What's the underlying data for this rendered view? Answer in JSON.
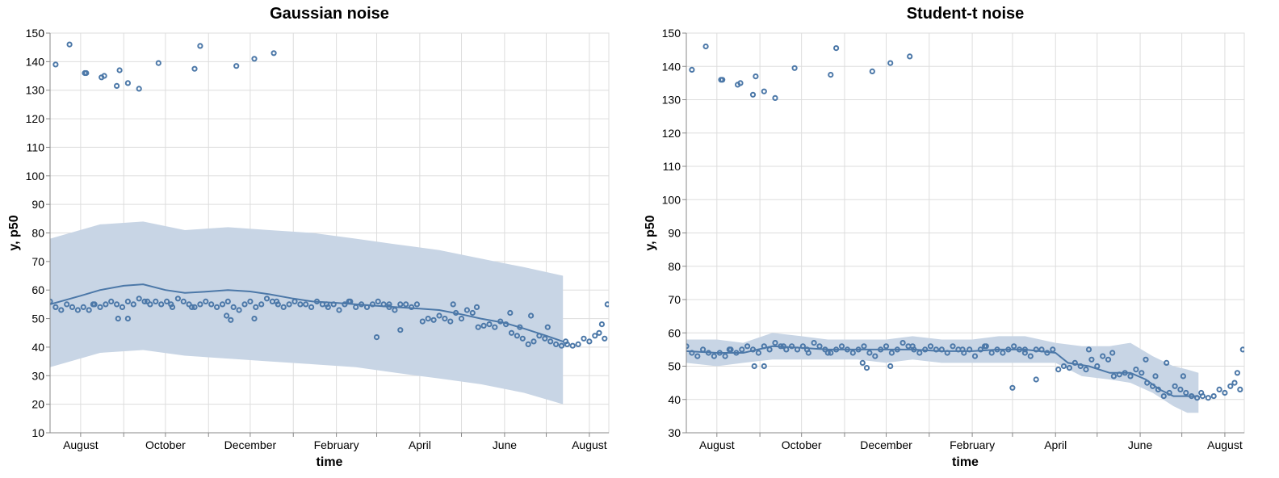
{
  "colors": {
    "series": "#4c78a8",
    "band": "#c8d5e5",
    "grid": "#dddddd",
    "axis": "#888888"
  },
  "chart_data": [
    {
      "type": "line",
      "title": "Gaussian noise",
      "xlabel": "time",
      "ylabel": "y, p50",
      "ylim": [
        10,
        150
      ],
      "yticks": [
        10,
        20,
        30,
        40,
        50,
        60,
        70,
        80,
        90,
        100,
        110,
        120,
        130,
        140,
        150
      ],
      "xlim": [
        "2019-07-10",
        "2020-08-15"
      ],
      "xticks": [
        {
          "date": "2019-08-01",
          "label": "August"
        },
        {
          "date": "2019-09-01",
          "label": ""
        },
        {
          "date": "2019-10-01",
          "label": "October"
        },
        {
          "date": "2019-11-01",
          "label": ""
        },
        {
          "date": "2019-12-01",
          "label": "December"
        },
        {
          "date": "2020-01-01",
          "label": ""
        },
        {
          "date": "2020-02-01",
          "label": "February"
        },
        {
          "date": "2020-03-01",
          "label": ""
        },
        {
          "date": "2020-04-01",
          "label": "April"
        },
        {
          "date": "2020-05-01",
          "label": ""
        },
        {
          "date": "2020-06-01",
          "label": "June"
        },
        {
          "date": "2020-07-01",
          "label": ""
        },
        {
          "date": "2020-08-01",
          "label": "August"
        }
      ],
      "grid": true,
      "band": {
        "name": "prediction interval",
        "x": [
          "2019-07-10",
          "2019-08-15",
          "2019-09-15",
          "2019-10-15",
          "2019-11-15",
          "2019-12-15",
          "2020-01-15",
          "2020-02-15",
          "2020-03-15",
          "2020-04-15",
          "2020-05-15",
          "2020-06-15",
          "2020-07-13"
        ],
        "lower": [
          33,
          38,
          39,
          37,
          36,
          35,
          34,
          33,
          31,
          29,
          27,
          24,
          20
        ],
        "upper": [
          78,
          83,
          84,
          81,
          82,
          81,
          80,
          78,
          76,
          74,
          71,
          68,
          65
        ]
      },
      "line": {
        "name": "p50",
        "x": [
          "2019-07-10",
          "2019-08-01",
          "2019-08-15",
          "2019-09-01",
          "2019-09-15",
          "2019-10-01",
          "2019-10-15",
          "2019-11-01",
          "2019-11-15",
          "2019-12-01",
          "2019-12-15",
          "2020-01-01",
          "2020-01-15",
          "2020-02-01",
          "2020-02-15",
          "2020-03-01",
          "2020-03-15",
          "2020-04-01",
          "2020-04-15",
          "2020-05-01",
          "2020-05-15",
          "2020-06-01",
          "2020-06-15",
          "2020-07-01",
          "2020-07-13"
        ],
        "y": [
          55,
          58,
          60,
          61.5,
          62,
          60,
          59,
          59.5,
          60,
          59.5,
          58.5,
          57,
          56,
          55.5,
          55,
          54.5,
          54,
          53.5,
          53,
          51.5,
          50,
          48.5,
          46.5,
          44,
          42
        ]
      },
      "points": {
        "name": "y",
        "x": [
          "2019-07-14",
          "2019-07-24",
          "2019-08-04",
          "2019-08-05",
          "2019-08-16",
          "2019-08-18",
          "2019-08-27",
          "2019-08-29",
          "2019-09-04",
          "2019-09-12",
          "2019-09-26",
          "2019-10-22",
          "2019-10-26",
          "2019-11-21",
          "2019-12-04",
          "2019-12-18",
          "2019-08-28",
          "2019-09-04",
          "2019-11-14",
          "2019-11-17",
          "2019-12-04",
          "2020-03-01",
          "2020-03-18",
          "2019-08-10",
          "2019-09-18",
          "2019-10-05",
          "2019-10-20",
          "2019-12-20",
          "2020-01-25",
          "2020-02-10",
          "2020-03-10",
          "2020-04-25",
          "2020-05-12",
          "2019-07-10",
          "2019-07-14",
          "2019-07-18",
          "2019-07-22",
          "2019-07-26",
          "2019-07-30",
          "2019-08-03",
          "2019-08-07",
          "2019-08-11",
          "2019-08-15",
          "2019-08-19",
          "2019-08-23",
          "2019-08-27",
          "2019-08-31",
          "2019-09-04",
          "2019-09-08",
          "2019-09-12",
          "2019-09-16",
          "2019-09-20",
          "2019-09-24",
          "2019-09-28",
          "2019-10-02",
          "2019-10-06",
          "2019-10-10",
          "2019-10-14",
          "2019-10-18",
          "2019-10-22",
          "2019-10-26",
          "2019-10-30",
          "2019-11-03",
          "2019-11-07",
          "2019-11-11",
          "2019-11-15",
          "2019-11-19",
          "2019-11-23",
          "2019-11-27",
          "2019-12-01",
          "2019-12-05",
          "2019-12-09",
          "2019-12-13",
          "2019-12-17",
          "2019-12-21",
          "2019-12-25",
          "2019-12-29",
          "2020-01-02",
          "2020-01-06",
          "2020-01-10",
          "2020-01-14",
          "2020-01-18",
          "2020-01-22",
          "2020-01-26",
          "2020-01-30",
          "2020-02-03",
          "2020-02-07",
          "2020-02-11",
          "2020-02-15",
          "2020-02-19",
          "2020-02-23",
          "2020-02-27",
          "2020-03-02",
          "2020-03-06",
          "2020-03-10",
          "2020-03-14",
          "2020-03-18",
          "2020-03-22",
          "2020-03-26",
          "2020-03-30",
          "2020-04-03",
          "2020-04-07",
          "2020-04-11",
          "2020-04-15",
          "2020-04-19",
          "2020-04-23",
          "2020-04-27",
          "2020-05-01",
          "2020-05-05",
          "2020-05-09",
          "2020-05-13",
          "2020-05-17",
          "2020-05-21",
          "2020-05-25",
          "2020-05-29",
          "2020-06-02",
          "2020-06-06",
          "2020-06-10",
          "2020-06-14",
          "2020-06-18",
          "2020-06-22",
          "2020-06-26",
          "2020-06-30",
          "2020-07-04",
          "2020-07-08",
          "2020-07-12",
          "2020-07-16",
          "2020-07-20",
          "2020-07-24",
          "2020-07-28",
          "2020-08-01",
          "2020-08-05",
          "2020-08-08",
          "2020-08-12",
          "2020-08-14",
          "2020-06-05",
          "2020-06-12",
          "2020-06-20",
          "2020-07-02",
          "2020-07-15",
          "2020-08-10"
        ],
        "y": [
          139,
          146,
          136,
          136,
          134.5,
          135,
          131.5,
          137,
          132.5,
          130.5,
          139.5,
          137.5,
          145.5,
          138.5,
          141,
          143,
          50,
          50,
          51,
          49.5,
          50,
          43.5,
          46,
          55,
          56,
          55,
          54,
          56,
          55,
          56,
          55,
          55,
          54,
          56,
          54,
          53,
          55,
          54,
          53,
          54,
          53,
          55,
          54,
          55,
          56,
          55,
          54,
          56,
          55,
          57,
          56,
          55,
          56,
          55,
          56,
          54,
          57,
          56,
          55,
          54,
          55,
          56,
          55,
          54,
          55,
          56,
          54,
          53,
          55,
          56,
          54,
          55,
          57,
          56,
          55,
          54,
          55,
          56,
          55,
          55,
          54,
          56,
          55,
          54,
          55,
          53,
          55,
          56,
          54,
          55,
          54,
          55,
          56,
          55,
          54,
          53,
          55,
          55,
          54,
          55,
          49,
          50,
          49.5,
          51,
          50,
          49,
          52,
          50,
          53,
          52,
          47,
          47.5,
          48,
          47,
          49,
          48,
          45,
          44,
          43,
          41,
          42,
          44,
          43,
          42,
          41,
          40.5,
          41,
          40.5,
          41,
          43,
          42,
          44,
          45,
          43,
          55,
          52,
          47,
          51,
          47,
          42,
          48
        ]
      }
    },
    {
      "type": "line",
      "title": "Student-t noise",
      "xlabel": "time",
      "ylabel": "y, p50",
      "ylim": [
        30,
        150
      ],
      "yticks": [
        30,
        40,
        50,
        60,
        70,
        80,
        90,
        100,
        110,
        120,
        130,
        140,
        150
      ],
      "xlim": [
        "2019-07-10",
        "2020-08-15"
      ],
      "xticks": [
        {
          "date": "2019-08-01",
          "label": "August"
        },
        {
          "date": "2019-09-01",
          "label": ""
        },
        {
          "date": "2019-10-01",
          "label": "October"
        },
        {
          "date": "2019-11-01",
          "label": ""
        },
        {
          "date": "2019-12-01",
          "label": "December"
        },
        {
          "date": "2020-01-01",
          "label": ""
        },
        {
          "date": "2020-02-01",
          "label": "February"
        },
        {
          "date": "2020-03-01",
          "label": ""
        },
        {
          "date": "2020-04-01",
          "label": "April"
        },
        {
          "date": "2020-05-01",
          "label": ""
        },
        {
          "date": "2020-06-01",
          "label": "June"
        },
        {
          "date": "2020-07-01",
          "label": ""
        },
        {
          "date": "2020-08-01",
          "label": "August"
        }
      ],
      "grid": true,
      "band": {
        "name": "prediction interval",
        "x": [
          "2019-07-10",
          "2019-08-01",
          "2019-08-20",
          "2019-09-10",
          "2019-10-01",
          "2019-10-20",
          "2019-11-10",
          "2019-12-01",
          "2019-12-20",
          "2020-01-10",
          "2020-02-01",
          "2020-02-20",
          "2020-03-10",
          "2020-04-01",
          "2020-04-20",
          "2020-05-10",
          "2020-05-25",
          "2020-06-10",
          "2020-06-25",
          "2020-07-05",
          "2020-07-13"
        ],
        "lower": [
          51,
          50,
          51,
          52,
          52,
          52,
          52,
          51,
          52,
          51,
          51,
          51,
          51,
          51,
          47,
          46,
          45,
          42,
          38,
          36,
          36
        ],
        "upper": [
          58,
          58,
          57,
          60,
          59,
          58,
          58,
          58,
          59,
          58,
          58,
          59,
          59,
          57,
          56,
          56,
          57,
          53,
          50,
          49,
          48
        ]
      },
      "line": {
        "name": "p50",
        "x": [
          "2019-07-10",
          "2019-08-01",
          "2019-08-20",
          "2019-09-10",
          "2019-10-01",
          "2019-10-20",
          "2019-11-10",
          "2019-12-01",
          "2019-12-20",
          "2020-01-10",
          "2020-02-01",
          "2020-02-20",
          "2020-03-10",
          "2020-04-01",
          "2020-04-10",
          "2020-04-25",
          "2020-05-10",
          "2020-05-25",
          "2020-06-05",
          "2020-06-15",
          "2020-06-25",
          "2020-07-05",
          "2020-07-13"
        ],
        "y": [
          54.5,
          54,
          54,
          56,
          55.5,
          55,
          55,
          55,
          55,
          54.5,
          54.5,
          55,
          55,
          54,
          51,
          50,
          48,
          48,
          46,
          43,
          41,
          41,
          41
        ]
      },
      "points": {
        "name": "y",
        "x": [
          "2019-07-14",
          "2019-07-24",
          "2019-08-04",
          "2019-08-05",
          "2019-08-16",
          "2019-08-18",
          "2019-08-27",
          "2019-08-29",
          "2019-09-04",
          "2019-09-12",
          "2019-09-26",
          "2019-10-22",
          "2019-10-26",
          "2019-11-21",
          "2019-12-04",
          "2019-12-18",
          "2019-08-28",
          "2019-09-04",
          "2019-11-14",
          "2019-11-17",
          "2019-12-04",
          "2020-03-01",
          "2020-03-18",
          "2019-08-10",
          "2019-09-18",
          "2019-10-05",
          "2019-10-20",
          "2019-12-20",
          "2020-01-25",
          "2020-02-10",
          "2020-03-10",
          "2020-04-25",
          "2020-05-12",
          "2019-07-10",
          "2019-07-14",
          "2019-07-18",
          "2019-07-22",
          "2019-07-26",
          "2019-07-30",
          "2019-08-03",
          "2019-08-07",
          "2019-08-11",
          "2019-08-15",
          "2019-08-19",
          "2019-08-23",
          "2019-08-27",
          "2019-08-31",
          "2019-09-04",
          "2019-09-08",
          "2019-09-12",
          "2019-09-16",
          "2019-09-20",
          "2019-09-24",
          "2019-09-28",
          "2019-10-02",
          "2019-10-06",
          "2019-10-10",
          "2019-10-14",
          "2019-10-18",
          "2019-10-22",
          "2019-10-26",
          "2019-10-30",
          "2019-11-03",
          "2019-11-07",
          "2019-11-11",
          "2019-11-15",
          "2019-11-19",
          "2019-11-23",
          "2019-11-27",
          "2019-12-01",
          "2019-12-05",
          "2019-12-09",
          "2019-12-13",
          "2019-12-17",
          "2019-12-21",
          "2019-12-25",
          "2019-12-29",
          "2020-01-02",
          "2020-01-06",
          "2020-01-10",
          "2020-01-14",
          "2020-01-18",
          "2020-01-22",
          "2020-01-26",
          "2020-01-30",
          "2020-02-03",
          "2020-02-07",
          "2020-02-11",
          "2020-02-15",
          "2020-02-19",
          "2020-02-23",
          "2020-02-27",
          "2020-03-02",
          "2020-03-06",
          "2020-03-10",
          "2020-03-14",
          "2020-03-18",
          "2020-03-22",
          "2020-03-26",
          "2020-03-30",
          "2020-04-03",
          "2020-04-07",
          "2020-04-11",
          "2020-04-15",
          "2020-04-19",
          "2020-04-23",
          "2020-04-27",
          "2020-05-01",
          "2020-05-05",
          "2020-05-09",
          "2020-05-13",
          "2020-05-17",
          "2020-05-21",
          "2020-05-25",
          "2020-05-29",
          "2020-06-02",
          "2020-06-06",
          "2020-06-10",
          "2020-06-14",
          "2020-06-18",
          "2020-06-22",
          "2020-06-26",
          "2020-06-30",
          "2020-07-04",
          "2020-07-08",
          "2020-07-12",
          "2020-07-16",
          "2020-07-20",
          "2020-07-24",
          "2020-07-28",
          "2020-08-01",
          "2020-08-05",
          "2020-08-08",
          "2020-08-12",
          "2020-08-14",
          "2020-06-05",
          "2020-06-12",
          "2020-06-20",
          "2020-07-02",
          "2020-07-15",
          "2020-08-10"
        ],
        "y": [
          139,
          146,
          136,
          136,
          134.5,
          135,
          131.5,
          137,
          132.5,
          130.5,
          139.5,
          137.5,
          145.5,
          138.5,
          141,
          143,
          50,
          50,
          51,
          49.5,
          50,
          43.5,
          46,
          55,
          56,
          55,
          54,
          56,
          55,
          56,
          55,
          55,
          54,
          56,
          54,
          53,
          55,
          54,
          53,
          54,
          53,
          55,
          54,
          55,
          56,
          55,
          54,
          56,
          55,
          57,
          56,
          55,
          56,
          55,
          56,
          54,
          57,
          56,
          55,
          54,
          55,
          56,
          55,
          54,
          55,
          56,
          54,
          53,
          55,
          56,
          54,
          55,
          57,
          56,
          55,
          54,
          55,
          56,
          55,
          55,
          54,
          56,
          55,
          54,
          55,
          53,
          55,
          56,
          54,
          55,
          54,
          55,
          56,
          55,
          54,
          53,
          55,
          55,
          54,
          55,
          49,
          50,
          49.5,
          51,
          50,
          49,
          52,
          50,
          53,
          52,
          47,
          47.5,
          48,
          47,
          49,
          48,
          45,
          44,
          43,
          41,
          42,
          44,
          43,
          42,
          41,
          40.5,
          41,
          40.5,
          41,
          43,
          42,
          44,
          45,
          43,
          55,
          52,
          47,
          51,
          47,
          42,
          48
        ]
      }
    }
  ]
}
